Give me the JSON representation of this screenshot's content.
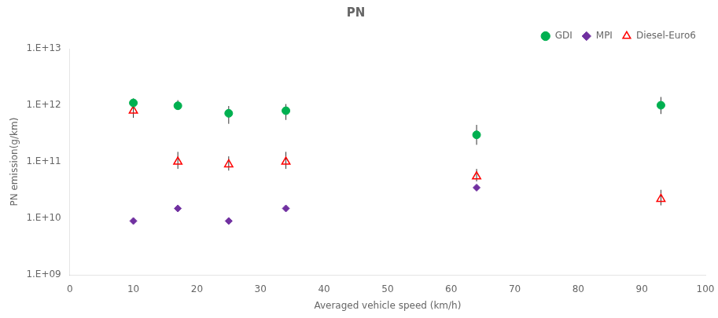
{
  "chart_data": {
    "type": "scatter",
    "title": "PN",
    "x_label": "Averaged vehicle speed (km/h)",
    "y_label": "PN emission(g/km)",
    "xlim": [
      0,
      100
    ],
    "xticks": [
      0,
      10,
      20,
      30,
      40,
      50,
      60,
      70,
      80,
      90,
      100
    ],
    "ylim": [
      1000000000.0,
      10000000000000.0
    ],
    "yticks": [
      {
        "value": 1000000000.0,
        "label": "1.E+09"
      },
      {
        "value": 10000000000.0,
        "label": "1.E+10"
      },
      {
        "value": 100000000000.0,
        "label": "1.E+11"
      },
      {
        "value": 1000000000000.0,
        "label": "1.E+12"
      },
      {
        "value": 10000000000000.0,
        "label": "1.E+13"
      }
    ],
    "log": "y",
    "grid": false,
    "legend": "upper right",
    "series": [
      {
        "name": "GDI",
        "color": "#00b050",
        "marker": "circle",
        "x": [
          10,
          17,
          25,
          34,
          64,
          93
        ],
        "values": [
          1100000000000.0,
          980000000000.0,
          720000000000.0,
          800000000000.0,
          300000000000.0,
          1000000000000.0
        ],
        "error_low": [
          180000000000.0,
          150000000000.0,
          250000000000.0,
          250000000000.0,
          100000000000.0,
          300000000000.0
        ],
        "error_high": [
          220000000000.0,
          250000000000.0,
          250000000000.0,
          250000000000.0,
          150000000000.0,
          400000000000.0
        ]
      },
      {
        "name": "MPI",
        "color": "#7030a0",
        "marker": "diamond",
        "x": [
          10,
          17,
          25,
          34,
          64
        ],
        "values": [
          9000000000.0,
          15000000000.0,
          9000000000.0,
          15000000000.0,
          35000000000.0
        ]
      },
      {
        "name": "Diesel-Euro6",
        "color": "#ff0000",
        "marker": "open-triangle",
        "x": [
          10,
          17,
          25,
          34,
          64,
          93
        ],
        "values": [
          800000000000.0,
          100000000000.0,
          90000000000.0,
          100000000000.0,
          55000000000.0,
          22000000000.0
        ],
        "error_low": [
          200000000000.0,
          25000000000.0,
          20000000000.0,
          25000000000.0,
          10000000000.0,
          5000000000.0
        ],
        "error_high": [
          250000000000.0,
          50000000000.0,
          35000000000.0,
          50000000000.0,
          20000000000.0,
          10000000000.0
        ]
      }
    ]
  }
}
